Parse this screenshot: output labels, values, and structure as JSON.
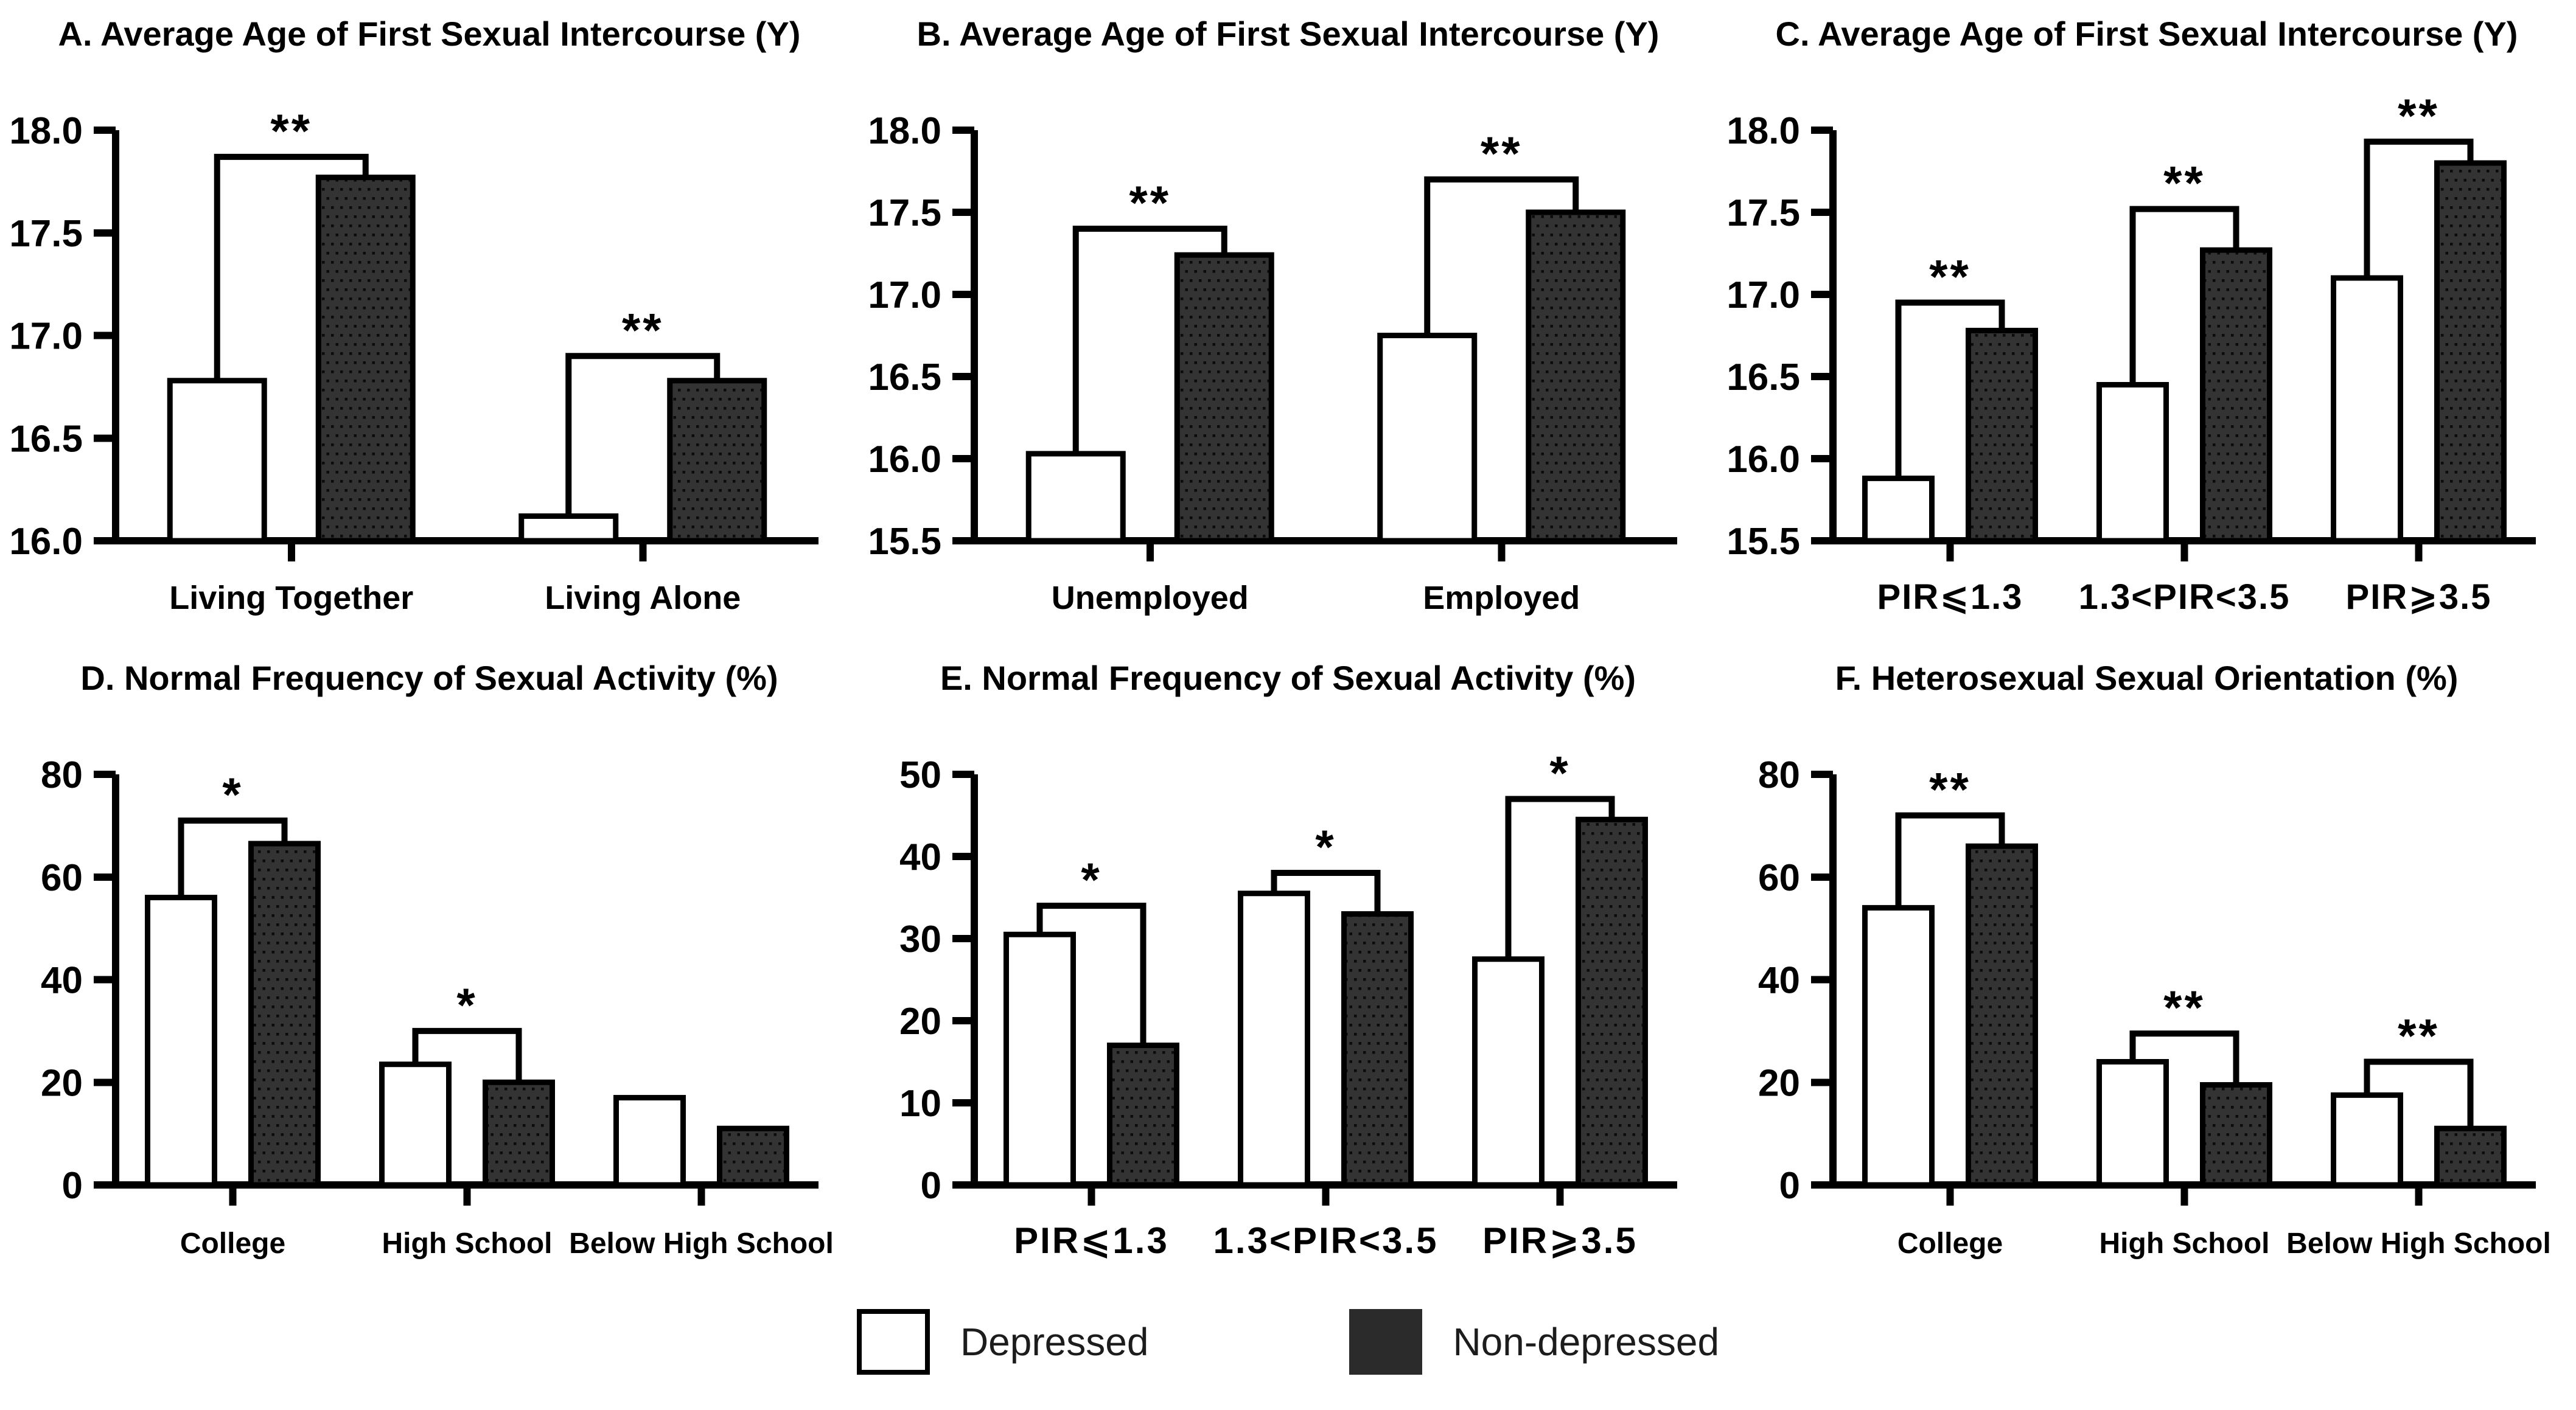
{
  "figure": {
    "background": "#ffffff"
  },
  "legend": {
    "items": [
      {
        "label": "Depressed",
        "swatch": "white"
      },
      {
        "label": "Non-depressed",
        "swatch": "dark-dotted"
      }
    ]
  },
  "colors": {
    "depressed_fill": "#ffffff",
    "nondepressed_fill": "#333333",
    "nondepressed_dot": "#0b0b0b",
    "line": "#000000",
    "legend_dark_swatch": "#2b2b2b"
  },
  "chart_data": [
    {
      "panel": "A",
      "type": "bar",
      "title": "A. Average Age of First Sexual Intercourse (Y)",
      "ylim": [
        16.0,
        18.0
      ],
      "yticks": [
        "16.0",
        "16.5",
        "17.0",
        "17.5",
        "18.0"
      ],
      "grid": false,
      "categories": [
        "Living Together",
        "Living Alone"
      ],
      "series": [
        {
          "name": "Depressed",
          "values": [
            16.78,
            16.12
          ]
        },
        {
          "name": "Non-depressed",
          "values": [
            17.77,
            16.78
          ]
        }
      ],
      "significance": [
        {
          "category_index": 0,
          "label": "**",
          "bracket_y": 17.87
        },
        {
          "category_index": 1,
          "label": "**",
          "bracket_y": 16.9
        }
      ]
    },
    {
      "panel": "B",
      "type": "bar",
      "title": "B. Average Age of First Sexual Intercourse (Y)",
      "ylim": [
        15.5,
        18.0
      ],
      "yticks": [
        "15.5",
        "16.0",
        "16.5",
        "17.0",
        "17.5",
        "18.0"
      ],
      "grid": false,
      "categories": [
        "Unemployed",
        "Employed"
      ],
      "series": [
        {
          "name": "Depressed",
          "values": [
            16.03,
            16.75
          ]
        },
        {
          "name": "Non-depressed",
          "values": [
            17.24,
            17.5
          ]
        }
      ],
      "significance": [
        {
          "category_index": 0,
          "label": "**",
          "bracket_y": 17.4
        },
        {
          "category_index": 1,
          "label": "**",
          "bracket_y": 17.7
        }
      ]
    },
    {
      "panel": "C",
      "type": "bar",
      "title": "C. Average Age of First Sexual Intercourse (Y)",
      "ylim": [
        15.5,
        18.0
      ],
      "yticks": [
        "15.5",
        "16.0",
        "16.5",
        "17.0",
        "17.5",
        "18.0"
      ],
      "grid": false,
      "categories": [
        "PIR⩽1.3",
        "1.3<PIR<3.5",
        "PIR⩾3.5"
      ],
      "series": [
        {
          "name": "Depressed",
          "values": [
            15.88,
            16.45,
            17.1
          ]
        },
        {
          "name": "Non-depressed",
          "values": [
            16.78,
            17.27,
            17.8
          ]
        }
      ],
      "significance": [
        {
          "category_index": 0,
          "label": "**",
          "bracket_y": 16.95
        },
        {
          "category_index": 1,
          "label": "**",
          "bracket_y": 17.52
        },
        {
          "category_index": 2,
          "label": "**",
          "bracket_y": 17.93
        }
      ]
    },
    {
      "panel": "D",
      "type": "bar",
      "title": "D. Normal Frequency of Sexual Activity (%)",
      "ylim": [
        0,
        80
      ],
      "yticks": [
        "0",
        "20",
        "40",
        "60",
        "80"
      ],
      "grid": false,
      "categories": [
        "College",
        "High School",
        "Below High School"
      ],
      "series": [
        {
          "name": "Depressed",
          "values": [
            56,
            23.5,
            17
          ]
        },
        {
          "name": "Non-depressed",
          "values": [
            66.5,
            20,
            11
          ]
        }
      ],
      "significance": [
        {
          "category_index": 0,
          "label": "*",
          "bracket_y": 71
        },
        {
          "category_index": 1,
          "label": "*",
          "bracket_y": 30
        }
      ]
    },
    {
      "panel": "E",
      "type": "bar",
      "title": "E. Normal Frequency of Sexual Activity (%)",
      "ylim": [
        0,
        50
      ],
      "yticks": [
        "0",
        "10",
        "20",
        "30",
        "40",
        "50"
      ],
      "grid": false,
      "categories": [
        "PIR⩽1.3",
        "1.3<PIR<3.5",
        "PIR⩾3.5"
      ],
      "series": [
        {
          "name": "Depressed",
          "values": [
            30.5,
            35.5,
            27.5
          ]
        },
        {
          "name": "Non-depressed",
          "values": [
            17,
            33,
            44.5
          ]
        }
      ],
      "significance": [
        {
          "category_index": 0,
          "label": "*",
          "bracket_y": 34
        },
        {
          "category_index": 1,
          "label": "*",
          "bracket_y": 38
        },
        {
          "category_index": 2,
          "label": "*",
          "bracket_y": 47
        }
      ]
    },
    {
      "panel": "F",
      "type": "bar",
      "title": "F. Heterosexual Sexual Orientation (%)",
      "ylim": [
        0,
        80
      ],
      "yticks": [
        "0",
        "20",
        "40",
        "60",
        "80"
      ],
      "grid": false,
      "categories": [
        "College",
        "High School",
        "Below High School"
      ],
      "series": [
        {
          "name": "Depressed",
          "values": [
            54,
            24,
            17.5
          ]
        },
        {
          "name": "Non-depressed",
          "values": [
            66,
            19.5,
            11
          ]
        }
      ],
      "significance": [
        {
          "category_index": 0,
          "label": "**",
          "bracket_y": 72
        },
        {
          "category_index": 1,
          "label": "**",
          "bracket_y": 29.5
        },
        {
          "category_index": 2,
          "label": "**",
          "bracket_y": 24
        }
      ]
    }
  ]
}
